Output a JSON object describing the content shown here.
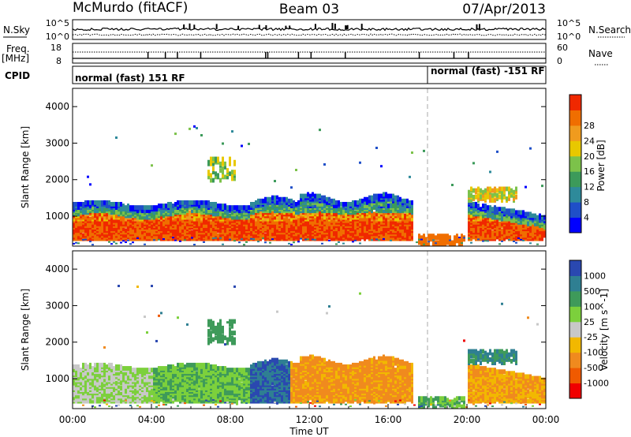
{
  "header": {
    "station": "McMurdo (fitACF)",
    "beam": "Beam 03",
    "date": "07/Apr/2013"
  },
  "top_panels": {
    "nsky_label": "N.Sky",
    "nsky_ticks": [
      "10^5",
      "10^0"
    ],
    "nsearch_label": "N.Search",
    "nsearch_ticks": [
      "10^5",
      "10^0"
    ],
    "freq_label": "Freq.",
    "freq_unit": "[MHz]",
    "freq_ticks": [
      "18",
      "8"
    ],
    "nave_label": "Nave",
    "nave_ticks": [
      "60",
      "0"
    ],
    "cpid_label": "CPID",
    "cpid_modes": [
      {
        "label": "normal (fast) 151 RF",
        "start_hour": 0
      },
      {
        "label": "normal (fast) -151 RF",
        "start_hour": 18
      }
    ]
  },
  "chart_data": [
    {
      "type": "heatmap",
      "name": "Power",
      "xlabel": "",
      "ylabel": "Slant Range [km]",
      "x_range_hours": [
        0,
        24
      ],
      "ylim": [
        180,
        4500
      ],
      "yticks": [
        "1000",
        "2000",
        "3000",
        "4000"
      ],
      "colorbar_label": "Power [dB]",
      "colorbar_ticks": [
        "4",
        "8",
        "12",
        "16",
        "20",
        "24",
        "28"
      ],
      "colorbar_colors": [
        "#0000ff",
        "#1f4fc8",
        "#2e8a9a",
        "#3c9a5a",
        "#7cc24a",
        "#e8c800",
        "#f09b1e",
        "#f06e00",
        "#f02800"
      ],
      "scale_range": [
        0,
        30
      ]
    },
    {
      "type": "heatmap",
      "name": "Velocity",
      "xlabel": "Time UT",
      "ylabel": "Slant Range [km]",
      "x_range_hours": [
        0,
        24
      ],
      "ylim": [
        180,
        4500
      ],
      "yticks": [
        "1000",
        "2000",
        "3000",
        "4000"
      ],
      "xticks": [
        "00:00",
        "04:00",
        "08:00",
        "12:00",
        "16:00",
        "20:00",
        "00:00"
      ],
      "colorbar_label": "Velocity [m s^-1]",
      "colorbar_ticks": [
        "1000",
        "500",
        "100",
        "25",
        "-25",
        "-100",
        "-500",
        "-1000"
      ],
      "colorbar_colors": [
        "#2a48b0",
        "#2f7f92",
        "#3e9a5a",
        "#7cd03c",
        "#c8c8c8",
        "#f2b800",
        "#f08a1e",
        "#f05a00",
        "#f00000"
      ],
      "scale_range": [
        -1000,
        1000
      ]
    }
  ]
}
